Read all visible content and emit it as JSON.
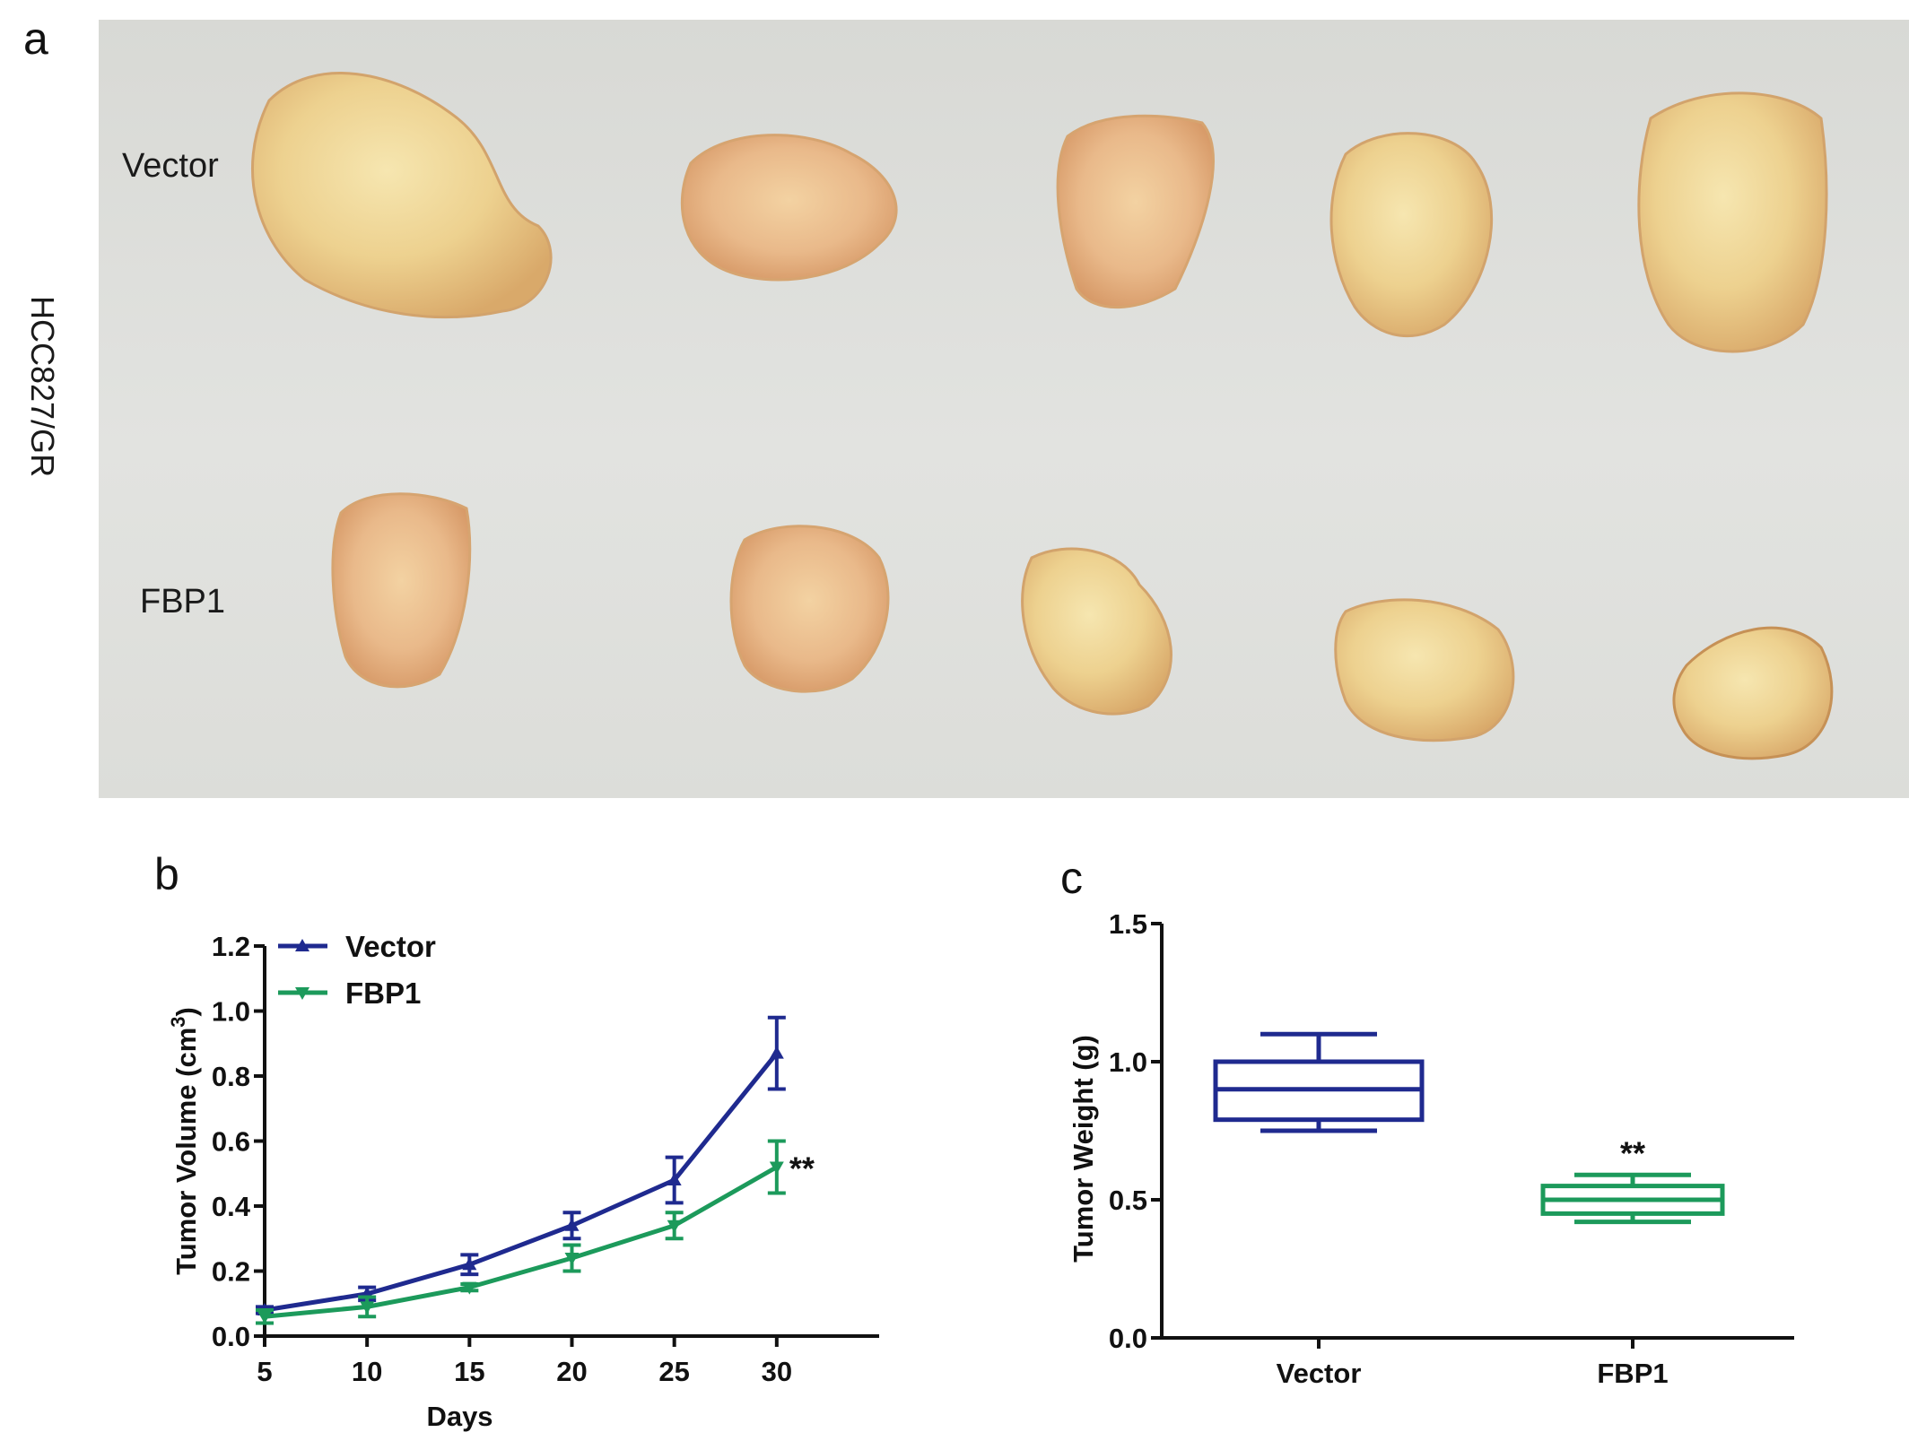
{
  "panel_a": {
    "letter": "a",
    "cell_line": "HCC827/GR",
    "row_labels": [
      "Vector",
      "FBP1"
    ]
  },
  "chart_data": [
    {
      "panel": "b",
      "type": "line",
      "xlabel": "Days",
      "ylabel": "Tumor Volume (cm",
      "ylabel_sup": "3",
      "ylabel_suffix": ")",
      "x": [
        5,
        10,
        15,
        20,
        25,
        30
      ],
      "xticks": [
        "5",
        "10",
        "15",
        "20",
        "25",
        "30"
      ],
      "yticks": [
        "0.0",
        "0.2",
        "0.4",
        "0.6",
        "0.8",
        "1.0",
        "1.2"
      ],
      "xlim": [
        5,
        35
      ],
      "ylim": [
        0,
        1.2
      ],
      "legend": "top-left",
      "grid": false,
      "series": [
        {
          "name": "Vector",
          "color": "#1f2a8f",
          "marker": "triangle-up",
          "values": [
            0.08,
            0.13,
            0.22,
            0.34,
            0.48,
            0.87
          ],
          "errors": [
            0.01,
            0.02,
            0.03,
            0.04,
            0.07,
            0.11
          ]
        },
        {
          "name": "FBP1",
          "color": "#1c9a5b",
          "marker": "triangle-down",
          "values": [
            0.06,
            0.09,
            0.15,
            0.24,
            0.34,
            0.52
          ],
          "errors": [
            0.02,
            0.03,
            0.01,
            0.04,
            0.04,
            0.08
          ]
        }
      ],
      "annotation": "**"
    },
    {
      "panel": "c",
      "type": "box",
      "ylabel": "Tumor Weight (g)",
      "categories": [
        "Vector",
        "FBP1"
      ],
      "yticks": [
        "0.0",
        "0.5",
        "1.0",
        "1.5"
      ],
      "ylim": [
        0,
        1.5
      ],
      "grid": false,
      "boxes": [
        {
          "name": "Vector",
          "color": "#1f2a8f",
          "min": 0.75,
          "q1": 0.79,
          "median": 0.9,
          "q3": 1.0,
          "max": 1.1
        },
        {
          "name": "FBP1",
          "color": "#1c9a5b",
          "min": 0.42,
          "q1": 0.45,
          "median": 0.5,
          "q3": 0.55,
          "max": 0.59,
          "annotation": "**"
        }
      ]
    }
  ]
}
